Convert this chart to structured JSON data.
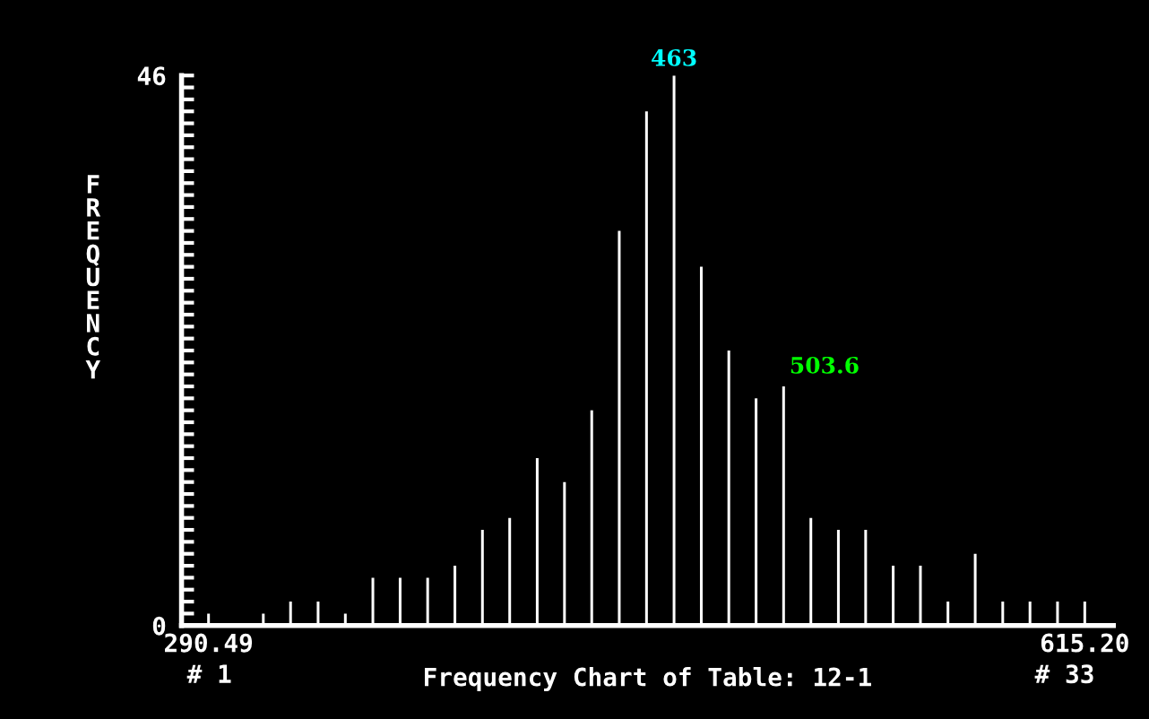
{
  "chart_data": {
    "type": "bar",
    "xlabel": "Frequency Chart of Table: 12-1",
    "ylabel": "FREQUENCY",
    "x": [
      290.5,
      300.6,
      310.8,
      320.9,
      331.1,
      341.2,
      351.4,
      361.5,
      371.7,
      381.8,
      392.0,
      402.1,
      412.3,
      422.4,
      432.5,
      442.7,
      452.8,
      463.0,
      473.1,
      483.3,
      493.4,
      503.6,
      513.7,
      523.9,
      534.0,
      544.2,
      554.3,
      564.5,
      574.6,
      584.8,
      594.9,
      605.1,
      615.2
    ],
    "values": [
      1,
      0,
      1,
      2,
      2,
      1,
      4,
      4,
      4,
      5,
      8,
      9,
      14,
      12,
      18,
      33,
      43,
      46,
      30,
      23,
      19,
      20,
      9,
      8,
      8,
      5,
      5,
      2,
      6,
      2,
      2,
      2,
      2
    ],
    "color": "#ffffff",
    "xlim": [
      280.5,
      625.8
    ],
    "xticks": [
      290.49,
      {
        "value": 615.2,
        "label": "615.20"
      }
    ],
    "ylim": [
      0,
      46
    ],
    "yticks": [
      0,
      {
        "value": 1,
        "label": null
      },
      {
        "value": 2,
        "label": null
      },
      {
        "value": 3,
        "label": null
      },
      {
        "value": 4,
        "label": null
      },
      {
        "value": 5,
        "label": null
      },
      {
        "value": 6,
        "label": null
      },
      {
        "value": 7,
        "label": null
      },
      {
        "value": 8,
        "label": null
      },
      {
        "value": 9,
        "label": null
      },
      {
        "value": 10,
        "label": null
      },
      {
        "value": 11,
        "label": null
      },
      {
        "value": 12,
        "label": null
      },
      {
        "value": 13,
        "label": null
      },
      {
        "value": 14,
        "label": null
      },
      {
        "value": 15,
        "label": null
      },
      {
        "value": 16,
        "label": null
      },
      {
        "value": 17,
        "label": null
      },
      {
        "value": 18,
        "label": null
      },
      {
        "value": 19,
        "label": null
      },
      {
        "value": 20,
        "label": null
      },
      {
        "value": 21,
        "label": null
      },
      {
        "value": 22,
        "label": null
      },
      {
        "value": 23,
        "label": null
      },
      {
        "value": 24,
        "label": null
      },
      {
        "value": 25,
        "label": null
      },
      {
        "value": 26,
        "label": null
      },
      {
        "value": 27,
        "label": null
      },
      {
        "value": 28,
        "label": null
      },
      {
        "value": 29,
        "label": null
      },
      {
        "value": 30,
        "label": null
      },
      {
        "value": 31,
        "label": null
      },
      {
        "value": 32,
        "label": null
      },
      {
        "value": 33,
        "label": null
      },
      {
        "value": 34,
        "label": null
      },
      {
        "value": 35,
        "label": null
      },
      {
        "value": 36,
        "label": null
      },
      {
        "value": 37,
        "label": null
      },
      {
        "value": 38,
        "label": null
      },
      {
        "value": 39,
        "label": null
      },
      {
        "value": 40,
        "label": null
      },
      {
        "value": 41,
        "label": null
      },
      {
        "value": 42,
        "label": null
      },
      {
        "value": 43,
        "label": null
      },
      {
        "value": 44,
        "label": null
      },
      {
        "value": 45,
        "label": null
      },
      46
    ],
    "annotations": [
      {
        "text": "463",
        "x": 463.0,
        "y": 46
      },
      "503.6",
      "# 1",
      "# 33"
    ],
    "grid": false,
    "legend": false
  }
}
